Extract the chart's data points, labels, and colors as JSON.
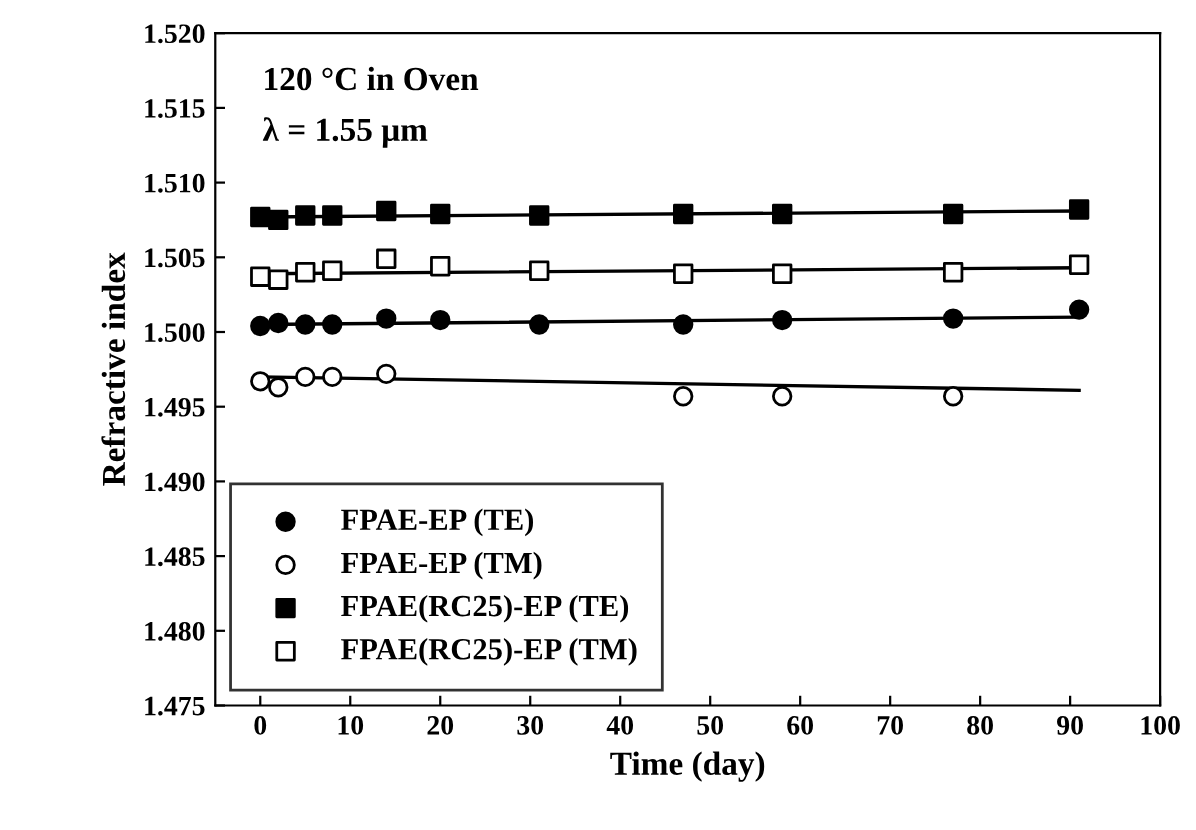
{
  "chart_data": {
    "type": "scatter",
    "xlabel": "Time (day)",
    "ylabel": "Refractive index",
    "annotations": [
      "120 °C in Oven",
      "λ = 1.55 μm"
    ],
    "xlim": [
      -5,
      100
    ],
    "xticks": [
      0,
      10,
      20,
      30,
      40,
      50,
      60,
      70,
      80,
      90,
      100
    ],
    "ylim": [
      1.475,
      1.52
    ],
    "yticks": [
      {
        "value": 1.475,
        "label": "1.475"
      },
      {
        "value": 1.48,
        "label": "1.480"
      },
      {
        "value": 1.485,
        "label": "1.485"
      },
      {
        "value": 1.49,
        "label": "1.490"
      },
      {
        "value": 1.495,
        "label": "1.495"
      },
      {
        "value": 1.5,
        "label": "1.500"
      },
      {
        "value": 1.505,
        "label": "1.505"
      },
      {
        "value": 1.51,
        "label": "1.510"
      },
      {
        "value": 1.515,
        "label": "1.515"
      },
      {
        "value": 1.52,
        "label": "1.520"
      }
    ],
    "grid": false,
    "legend": "bottom left",
    "series": [
      {
        "name": "FPAE-EP (TE)",
        "color": "#000000",
        "marker": "circle",
        "x": [
          0,
          2,
          5,
          8,
          14,
          20,
          31,
          47,
          58,
          77,
          91
        ],
        "values": [
          1.5004,
          1.5006,
          1.5005,
          1.5005,
          1.5009,
          1.5008,
          1.5005,
          1.5005,
          1.5008,
          1.5009,
          1.5015
        ]
      },
      {
        "name": "FPAE-EP (TM)",
        "color": "#ffffff",
        "marker": "circle",
        "x": [
          0,
          2,
          5,
          8,
          14,
          47,
          58,
          77
        ],
        "values": [
          1.4967,
          1.4963,
          1.497,
          1.497,
          1.4972,
          1.4957,
          1.4957,
          1.4957
        ]
      },
      {
        "name": "FPAE(RC25)-EP (TE)",
        "color": "#000000",
        "marker": "square",
        "x": [
          0,
          2,
          5,
          8,
          14,
          20,
          31,
          47,
          58,
          77,
          91
        ],
        "values": [
          1.5077,
          1.5075,
          1.5078,
          1.5078,
          1.5081,
          1.5079,
          1.5078,
          1.5079,
          1.5079,
          1.5079,
          1.5082
        ]
      },
      {
        "name": "FPAE(RC25)-EP (TM)",
        "color": "#ffffff",
        "marker": "square",
        "x": [
          0,
          2,
          5,
          8,
          14,
          20,
          31,
          47,
          58,
          77,
          91
        ],
        "values": [
          1.5037,
          1.5035,
          1.504,
          1.5041,
          1.5049,
          1.5044,
          1.5041,
          1.5039,
          1.5039,
          1.504,
          1.5045
        ]
      },
      {
        "type": "line",
        "color": "#000000",
        "x": [
          0,
          91
        ],
        "values": [
          1.5005,
          1.501
        ]
      },
      {
        "type": "line",
        "color": "#000000",
        "x": [
          0,
          91
        ],
        "values": [
          1.497,
          1.4961
        ]
      },
      {
        "type": "line",
        "color": "#000000",
        "x": [
          0,
          91
        ],
        "values": [
          1.5077,
          1.5081
        ]
      },
      {
        "type": "line",
        "color": "#000000",
        "x": [
          0,
          91
        ],
        "values": [
          1.5039,
          1.5043
        ]
      }
    ]
  }
}
